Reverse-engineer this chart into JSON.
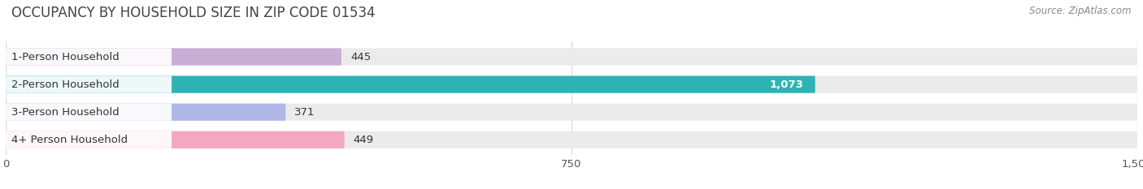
{
  "title": "OCCUPANCY BY HOUSEHOLD SIZE IN ZIP CODE 01534",
  "source_text": "Source: ZipAtlas.com",
  "categories": [
    "1-Person Household",
    "2-Person Household",
    "3-Person Household",
    "4+ Person Household"
  ],
  "values": [
    445,
    1073,
    371,
    449
  ],
  "bar_colors": [
    "#c9aed6",
    "#2db3b3",
    "#b0b8e8",
    "#f4a8c0"
  ],
  "bar_labels": [
    "445",
    "1,073",
    "371",
    "449"
  ],
  "label_colors": [
    "#444444",
    "#ffffff",
    "#444444",
    "#444444"
  ],
  "xlim": [
    0,
    1500
  ],
  "xticks": [
    0,
    750,
    1500
  ],
  "background_color": "#ffffff",
  "bar_bg_color": "#ebebeb",
  "title_fontsize": 12,
  "label_fontsize": 9.5,
  "tick_fontsize": 9.5,
  "source_fontsize": 8.5
}
